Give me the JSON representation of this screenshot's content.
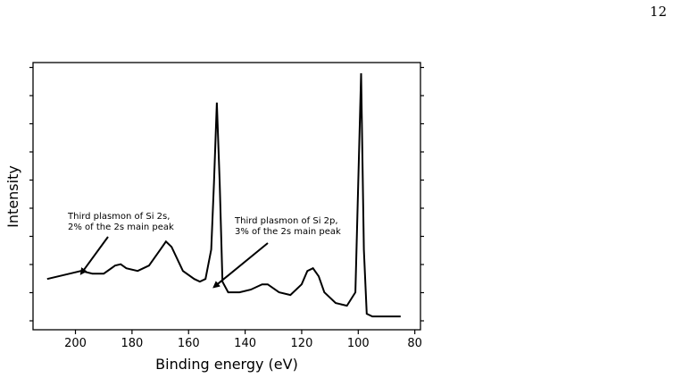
{
  "page": {
    "number": "12"
  },
  "chart_data": {
    "type": "line",
    "xlabel": "Binding energy (eV)",
    "ylabel": "Intensity",
    "xlim": [
      215,
      78
    ],
    "ylim": [
      0,
      1.0
    ],
    "x_ticks": [
      200,
      180,
      160,
      140,
      120,
      100,
      80
    ],
    "y_tick_labels_shown": false,
    "grid": false,
    "legend": null,
    "series": [
      {
        "x": [
          210,
          206,
          202,
          198,
          194,
          190,
          186,
          184,
          182,
          178,
          174,
          170,
          168,
          166,
          162,
          158,
          156,
          154,
          152,
          151,
          150,
          149,
          148,
          146,
          142,
          138,
          134,
          132,
          128,
          124,
          120,
          118,
          116,
          114,
          112,
          108,
          104,
          101,
          100,
          99,
          98,
          97,
          95,
          92,
          85
        ],
        "y": [
          0.19,
          0.2,
          0.21,
          0.22,
          0.21,
          0.21,
          0.24,
          0.245,
          0.23,
          0.22,
          0.24,
          0.3,
          0.33,
          0.31,
          0.22,
          0.19,
          0.18,
          0.19,
          0.3,
          0.55,
          0.85,
          0.55,
          0.18,
          0.14,
          0.14,
          0.15,
          0.17,
          0.17,
          0.14,
          0.13,
          0.17,
          0.22,
          0.23,
          0.2,
          0.14,
          0.1,
          0.09,
          0.14,
          0.55,
          0.96,
          0.3,
          0.06,
          0.05,
          0.05,
          0.05
        ]
      }
    ],
    "annotations": [
      {
        "lines": [
          "Third plasmon of Si 2s,",
          "2% of the 2s main peak"
        ],
        "arrow_to": [
          198,
          0.21
        ]
      },
      {
        "lines": [
          "Third plasmon of Si 2p,",
          "3% of the 2s main peak"
        ],
        "arrow_to": [
          151,
          0.16
        ]
      }
    ]
  }
}
